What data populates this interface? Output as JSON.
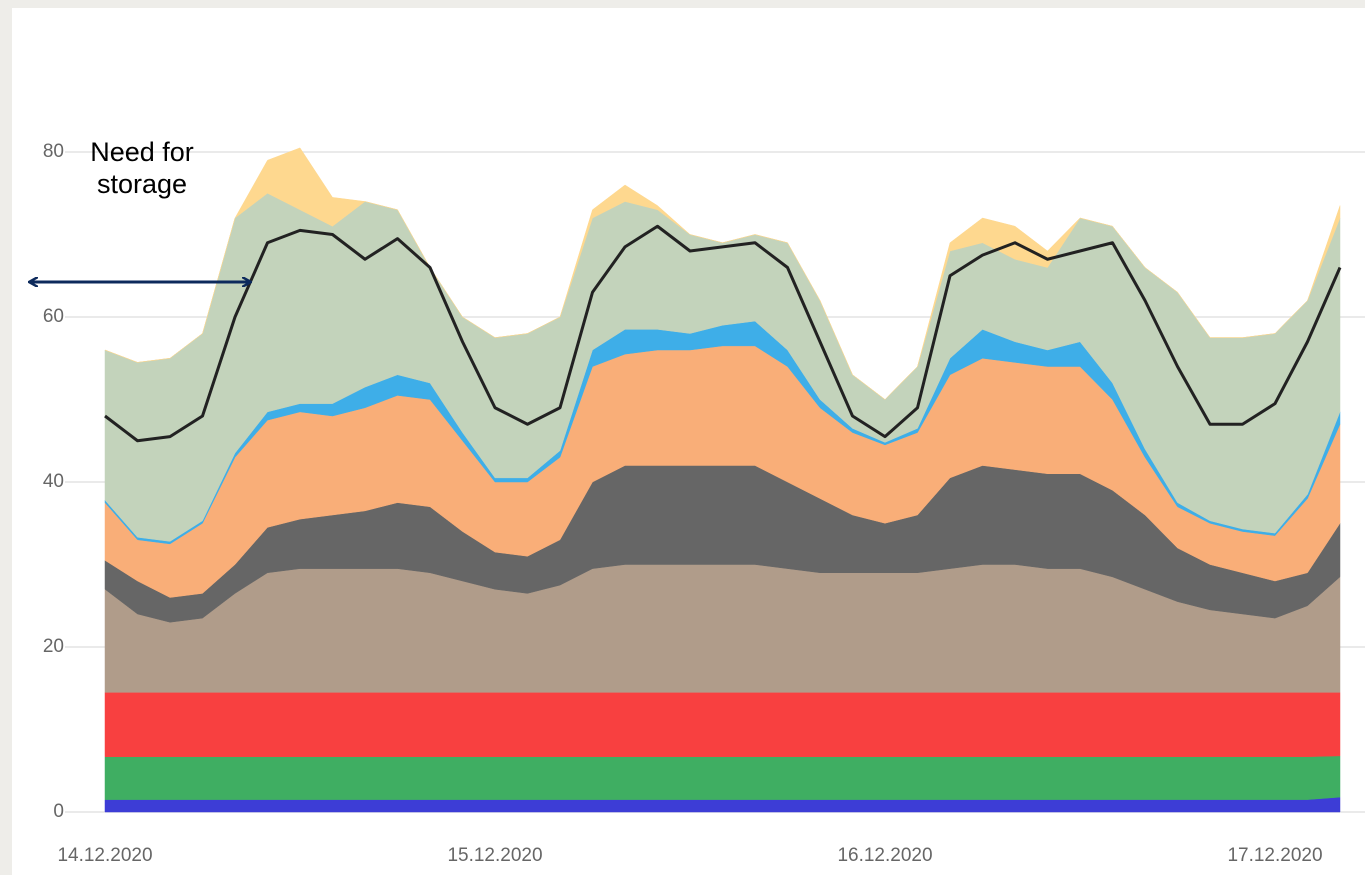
{
  "chart_data": {
    "type": "area",
    "annotation": "Need for storage",
    "x": [
      0,
      2,
      4,
      6,
      8,
      10,
      12,
      14,
      16,
      18,
      20,
      22,
      24,
      26,
      28,
      30,
      32,
      34,
      36,
      38,
      40,
      42,
      44,
      46,
      48,
      50,
      52,
      54,
      56,
      58,
      60,
      62,
      64,
      66,
      68,
      70,
      72,
      74,
      76
    ],
    "xlim": [
      0,
      76
    ],
    "xticks": [
      {
        "value": 0,
        "label": "14.12.2020"
      },
      {
        "value": 24,
        "label": "15.12.2020"
      },
      {
        "value": 48,
        "label": "16.12.2020"
      },
      {
        "value": 72,
        "label": "17.12.2020"
      }
    ],
    "ylim": [
      0,
      80
    ],
    "yticks": [
      0,
      20,
      40,
      60,
      80
    ],
    "grid": true,
    "stacked": true,
    "series": [
      {
        "color": "#3d3dd6",
        "values": [
          1.5,
          1.5,
          1.5,
          1.5,
          1.5,
          1.5,
          1.5,
          1.5,
          1.5,
          1.5,
          1.5,
          1.5,
          1.5,
          1.5,
          1.5,
          1.5,
          1.5,
          1.5,
          1.5,
          1.5,
          1.5,
          1.5,
          1.5,
          1.5,
          1.5,
          1.5,
          1.5,
          1.5,
          1.5,
          1.5,
          1.5,
          1.5,
          1.5,
          1.5,
          1.5,
          1.5,
          1.5,
          1.5,
          1.8
        ]
      },
      {
        "color": "#3fae62",
        "values": [
          5.2,
          5.2,
          5.2,
          5.2,
          5.2,
          5.2,
          5.2,
          5.2,
          5.2,
          5.2,
          5.2,
          5.2,
          5.2,
          5.2,
          5.2,
          5.2,
          5.2,
          5.2,
          5.2,
          5.2,
          5.2,
          5.2,
          5.2,
          5.2,
          5.2,
          5.2,
          5.2,
          5.2,
          5.2,
          5.2,
          5.2,
          5.2,
          5.2,
          5.2,
          5.2,
          5.2,
          5.2,
          5.2,
          5.0
        ]
      },
      {
        "color": "#f84040",
        "values": [
          7.8,
          7.8,
          7.8,
          7.8,
          7.8,
          7.8,
          7.8,
          7.8,
          7.8,
          7.8,
          7.8,
          7.8,
          7.8,
          7.8,
          7.8,
          7.8,
          7.8,
          7.8,
          7.8,
          7.8,
          7.8,
          7.8,
          7.8,
          7.8,
          7.8,
          7.8,
          7.8,
          7.8,
          7.8,
          7.8,
          7.8,
          7.8,
          7.8,
          7.8,
          7.8,
          7.8,
          7.8,
          7.8,
          7.7
        ]
      },
      {
        "color": "#b09c8a",
        "values": [
          12.5,
          9.5,
          8.5,
          9,
          12,
          14.5,
          15,
          15,
          15,
          15,
          14.5,
          13.5,
          12.5,
          12,
          13,
          15,
          15.5,
          15.5,
          15.5,
          15.5,
          15.5,
          15,
          14.5,
          14.5,
          14.5,
          14.5,
          15,
          15.5,
          15.5,
          15,
          15,
          14,
          12.5,
          11,
          10,
          9.5,
          9,
          10.5,
          14
        ]
      },
      {
        "color": "#666666",
        "values": [
          3.5,
          4,
          3,
          3,
          3.5,
          5.5,
          6,
          6.5,
          7,
          8,
          8,
          6,
          4.5,
          4.5,
          5.5,
          10.5,
          12,
          12,
          12,
          12,
          12,
          10.5,
          9,
          7,
          6,
          7,
          11,
          12,
          11.5,
          11.5,
          11.5,
          10.5,
          9,
          6.5,
          5.5,
          5,
          4.5,
          4,
          6.5
        ]
      },
      {
        "color": "#f9ae78",
        "values": [
          7,
          5,
          6.5,
          8.5,
          13,
          13,
          13,
          12,
          12.5,
          13,
          13,
          11,
          8.5,
          9,
          10,
          14,
          13.5,
          14,
          14,
          14.5,
          14.5,
          14,
          11,
          10,
          9.5,
          10,
          12.5,
          13,
          13,
          13,
          13,
          11,
          7,
          5,
          5,
          5,
          5.5,
          9,
          12
        ]
      },
      {
        "color": "#3eaee8",
        "values": [
          0.3,
          0.3,
          0.3,
          0.3,
          0.5,
          1,
          1,
          1.5,
          2.5,
          2.5,
          2,
          1,
          0.5,
          0.5,
          0.8,
          2,
          3,
          2.5,
          2,
          2.5,
          3,
          2,
          1,
          0.5,
          0.3,
          0.5,
          2,
          3.5,
          2.5,
          2,
          3,
          2,
          1,
          0.5,
          0.3,
          0.3,
          0.3,
          0.5,
          1.5
        ]
      },
      {
        "color": "#c3d3bb",
        "values": [
          18.2,
          21.2,
          22.2,
          22.7,
          28.5,
          26.5,
          23.5,
          21.5,
          22.5,
          20,
          14,
          14,
          17,
          17.5,
          16.2,
          16,
          15.5,
          14.5,
          12,
          10,
          10.5,
          13,
          12,
          6.5,
          5.2,
          7.5,
          13,
          10.5,
          10,
          10,
          15,
          19,
          22,
          25.5,
          22.2,
          23.2,
          24.2,
          23.5,
          23.5
        ]
      },
      {
        "color": "#fed88f",
        "values": [
          0,
          0,
          0,
          0,
          0,
          4,
          7.5,
          3.5,
          0,
          0,
          0,
          0,
          0,
          0,
          0,
          1,
          2,
          0.5,
          0,
          0,
          0,
          0,
          0,
          0,
          0,
          0,
          1,
          3,
          4,
          2,
          0,
          0,
          0,
          0,
          0,
          0,
          0,
          0,
          1.5
        ]
      }
    ],
    "line": {
      "color": "#222222",
      "values": [
        48,
        45,
        45.5,
        48,
        60,
        69,
        70.5,
        70,
        67,
        69.5,
        66,
        57,
        49,
        47,
        49,
        63,
        68.5,
        71,
        68,
        68.5,
        69,
        66,
        57,
        48,
        45.5,
        49,
        65,
        67.5,
        69,
        67,
        68,
        69,
        62,
        54,
        47,
        47,
        49.5,
        57,
        66
      ]
    }
  }
}
